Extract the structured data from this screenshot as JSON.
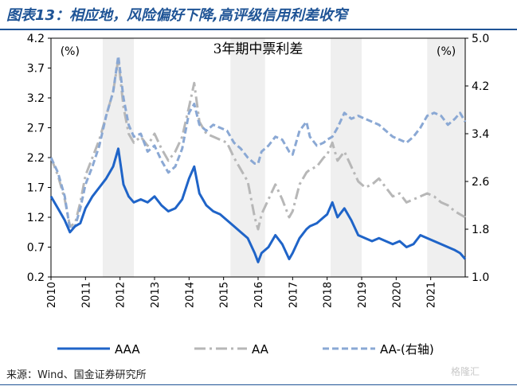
{
  "figure": {
    "title": "图表13：相应地，风险偏好下降,高评级信用利差收窄",
    "source": "来源：Wind、国金证券研究所",
    "watermark": "格隆汇"
  },
  "colors": {
    "title": "#1f5496",
    "AAA": "#1f64c8",
    "AA": "#b7b7b7",
    "AA_minus": "#8aa8d4",
    "shade": "#efefef"
  },
  "chart_data": {
    "type": "line",
    "title": "3年期中票利差",
    "left_axis_unit": "(%)",
    "right_axis_unit": "(%)",
    "x_ticks": [
      "2010",
      "2011",
      "2012",
      "2013",
      "2014",
      "2015",
      "2016",
      "2017",
      "2018",
      "2019",
      "2020",
      "2021"
    ],
    "xlim": [
      2010.0,
      2022.0
    ],
    "ylim_left": [
      0.2,
      4.2
    ],
    "ylim_right": [
      1.0,
      5.0
    ],
    "y_ticks_left": [
      "0.2",
      "0.7",
      "1.2",
      "1.7",
      "2.2",
      "2.7",
      "3.2",
      "3.7",
      "4.2"
    ],
    "y_ticks_right": [
      "1.0",
      "1.8",
      "2.6",
      "3.4",
      "4.2",
      "5.0"
    ],
    "shaded_periods": [
      [
        2011.5,
        2012.4
      ],
      [
        2015.2,
        2016.2
      ],
      [
        2018.1,
        2019.0
      ],
      [
        2020.9,
        2022.0
      ]
    ],
    "series": [
      {
        "name": "AAA",
        "axis": "left",
        "style": "solid",
        "x": [
          2010.0,
          2010.2,
          2010.4,
          2010.55,
          2010.7,
          2010.85,
          2011.0,
          2011.2,
          2011.4,
          2011.6,
          2011.8,
          2011.95,
          2012.1,
          2012.25,
          2012.4,
          2012.6,
          2012.8,
          2013.0,
          2013.2,
          2013.4,
          2013.6,
          2013.8,
          2014.0,
          2014.15,
          2014.3,
          2014.5,
          2014.7,
          2014.9,
          2015.1,
          2015.3,
          2015.5,
          2015.7,
          2015.9,
          2016.0,
          2016.1,
          2016.3,
          2016.5,
          2016.7,
          2016.9,
          2017.0,
          2017.2,
          2017.4,
          2017.5,
          2017.7,
          2017.9,
          2018.0,
          2018.15,
          2018.3,
          2018.5,
          2018.7,
          2018.9,
          2019.1,
          2019.3,
          2019.5,
          2019.7,
          2019.9,
          2020.1,
          2020.3,
          2020.5,
          2020.7,
          2020.9,
          2021.1,
          2021.3,
          2021.5,
          2021.7,
          2021.85,
          2022.0
        ],
        "y": [
          1.55,
          1.35,
          1.15,
          0.95,
          1.05,
          1.1,
          1.35,
          1.55,
          1.7,
          1.85,
          2.05,
          2.35,
          1.75,
          1.55,
          1.45,
          1.5,
          1.45,
          1.55,
          1.4,
          1.3,
          1.35,
          1.5,
          1.85,
          2.05,
          1.6,
          1.4,
          1.3,
          1.25,
          1.15,
          1.05,
          0.95,
          0.85,
          0.6,
          0.45,
          0.6,
          0.7,
          0.9,
          0.75,
          0.5,
          0.6,
          0.85,
          1.0,
          1.05,
          1.1,
          1.2,
          1.25,
          1.45,
          1.2,
          1.35,
          1.15,
          0.9,
          0.85,
          0.8,
          0.85,
          0.8,
          0.75,
          0.8,
          0.7,
          0.75,
          0.9,
          0.85,
          0.8,
          0.75,
          0.7,
          0.65,
          0.6,
          0.5
        ]
      },
      {
        "name": "AA",
        "axis": "left",
        "style": "dash-dot",
        "x": [
          2010.0,
          2010.2,
          2010.4,
          2010.55,
          2010.7,
          2010.85,
          2011.0,
          2011.2,
          2011.4,
          2011.6,
          2011.8,
          2011.95,
          2012.1,
          2012.25,
          2012.4,
          2012.6,
          2012.8,
          2013.0,
          2013.2,
          2013.4,
          2013.6,
          2013.8,
          2014.0,
          2014.15,
          2014.3,
          2014.5,
          2014.7,
          2014.9,
          2015.1,
          2015.3,
          2015.5,
          2015.7,
          2015.9,
          2016.0,
          2016.1,
          2016.3,
          2016.5,
          2016.7,
          2016.9,
          2017.0,
          2017.2,
          2017.4,
          2017.5,
          2017.7,
          2017.9,
          2018.0,
          2018.15,
          2018.3,
          2018.5,
          2018.7,
          2018.9,
          2019.1,
          2019.3,
          2019.5,
          2019.7,
          2019.9,
          2020.1,
          2020.3,
          2020.5,
          2020.7,
          2020.9,
          2021.1,
          2021.3,
          2021.5,
          2021.7,
          2021.85,
          2022.0
        ],
        "y": [
          2.2,
          1.9,
          1.5,
          1.05,
          1.1,
          1.45,
          1.9,
          2.2,
          2.5,
          2.9,
          3.3,
          3.85,
          3.05,
          2.6,
          2.45,
          2.55,
          2.4,
          2.6,
          2.35,
          2.15,
          2.3,
          2.55,
          3.05,
          3.45,
          2.8,
          2.6,
          2.55,
          2.5,
          2.45,
          2.2,
          2.0,
          1.8,
          1.2,
          1.0,
          1.25,
          1.5,
          1.75,
          1.5,
          1.2,
          1.3,
          1.75,
          1.95,
          2.0,
          2.05,
          2.2,
          2.25,
          2.45,
          2.15,
          2.3,
          2.05,
          1.8,
          1.7,
          1.75,
          1.85,
          1.7,
          1.55,
          1.6,
          1.45,
          1.5,
          1.55,
          1.6,
          1.55,
          1.45,
          1.4,
          1.3,
          1.25,
          1.2
        ]
      },
      {
        "name": "AA-(右轴)",
        "axis": "right",
        "style": "dashed",
        "x": [
          2010.0,
          2010.2,
          2010.4,
          2010.55,
          2010.7,
          2010.85,
          2011.0,
          2011.2,
          2011.4,
          2011.6,
          2011.8,
          2011.95,
          2012.1,
          2012.25,
          2012.4,
          2012.6,
          2012.8,
          2013.0,
          2013.2,
          2013.4,
          2013.6,
          2013.8,
          2014.0,
          2014.15,
          2014.3,
          2014.5,
          2014.7,
          2014.9,
          2015.1,
          2015.3,
          2015.5,
          2015.7,
          2015.9,
          2016.0,
          2016.1,
          2016.3,
          2016.5,
          2016.7,
          2016.9,
          2017.0,
          2017.2,
          2017.4,
          2017.5,
          2017.7,
          2017.9,
          2018.0,
          2018.15,
          2018.3,
          2018.5,
          2018.7,
          2018.9,
          2019.1,
          2019.3,
          2019.5,
          2019.7,
          2019.9,
          2020.1,
          2020.3,
          2020.5,
          2020.7,
          2020.9,
          2021.1,
          2021.3,
          2021.5,
          2021.7,
          2021.85,
          2022.0
        ],
        "y": [
          3.0,
          2.75,
          2.35,
          1.8,
          1.85,
          2.15,
          2.55,
          2.85,
          3.2,
          3.7,
          4.1,
          4.7,
          4.0,
          3.55,
          3.35,
          3.4,
          3.1,
          3.2,
          2.95,
          2.75,
          2.85,
          3.15,
          3.75,
          3.9,
          3.55,
          3.45,
          3.55,
          3.5,
          3.45,
          3.25,
          3.15,
          3.0,
          2.9,
          2.9,
          3.1,
          3.2,
          3.35,
          3.3,
          3.1,
          3.05,
          3.45,
          3.6,
          3.35,
          3.2,
          3.25,
          3.3,
          3.35,
          3.5,
          3.75,
          3.65,
          3.7,
          3.65,
          3.6,
          3.55,
          3.45,
          3.35,
          3.3,
          3.25,
          3.35,
          3.5,
          3.7,
          3.75,
          3.7,
          3.55,
          3.65,
          3.75,
          3.6
        ]
      }
    ]
  }
}
